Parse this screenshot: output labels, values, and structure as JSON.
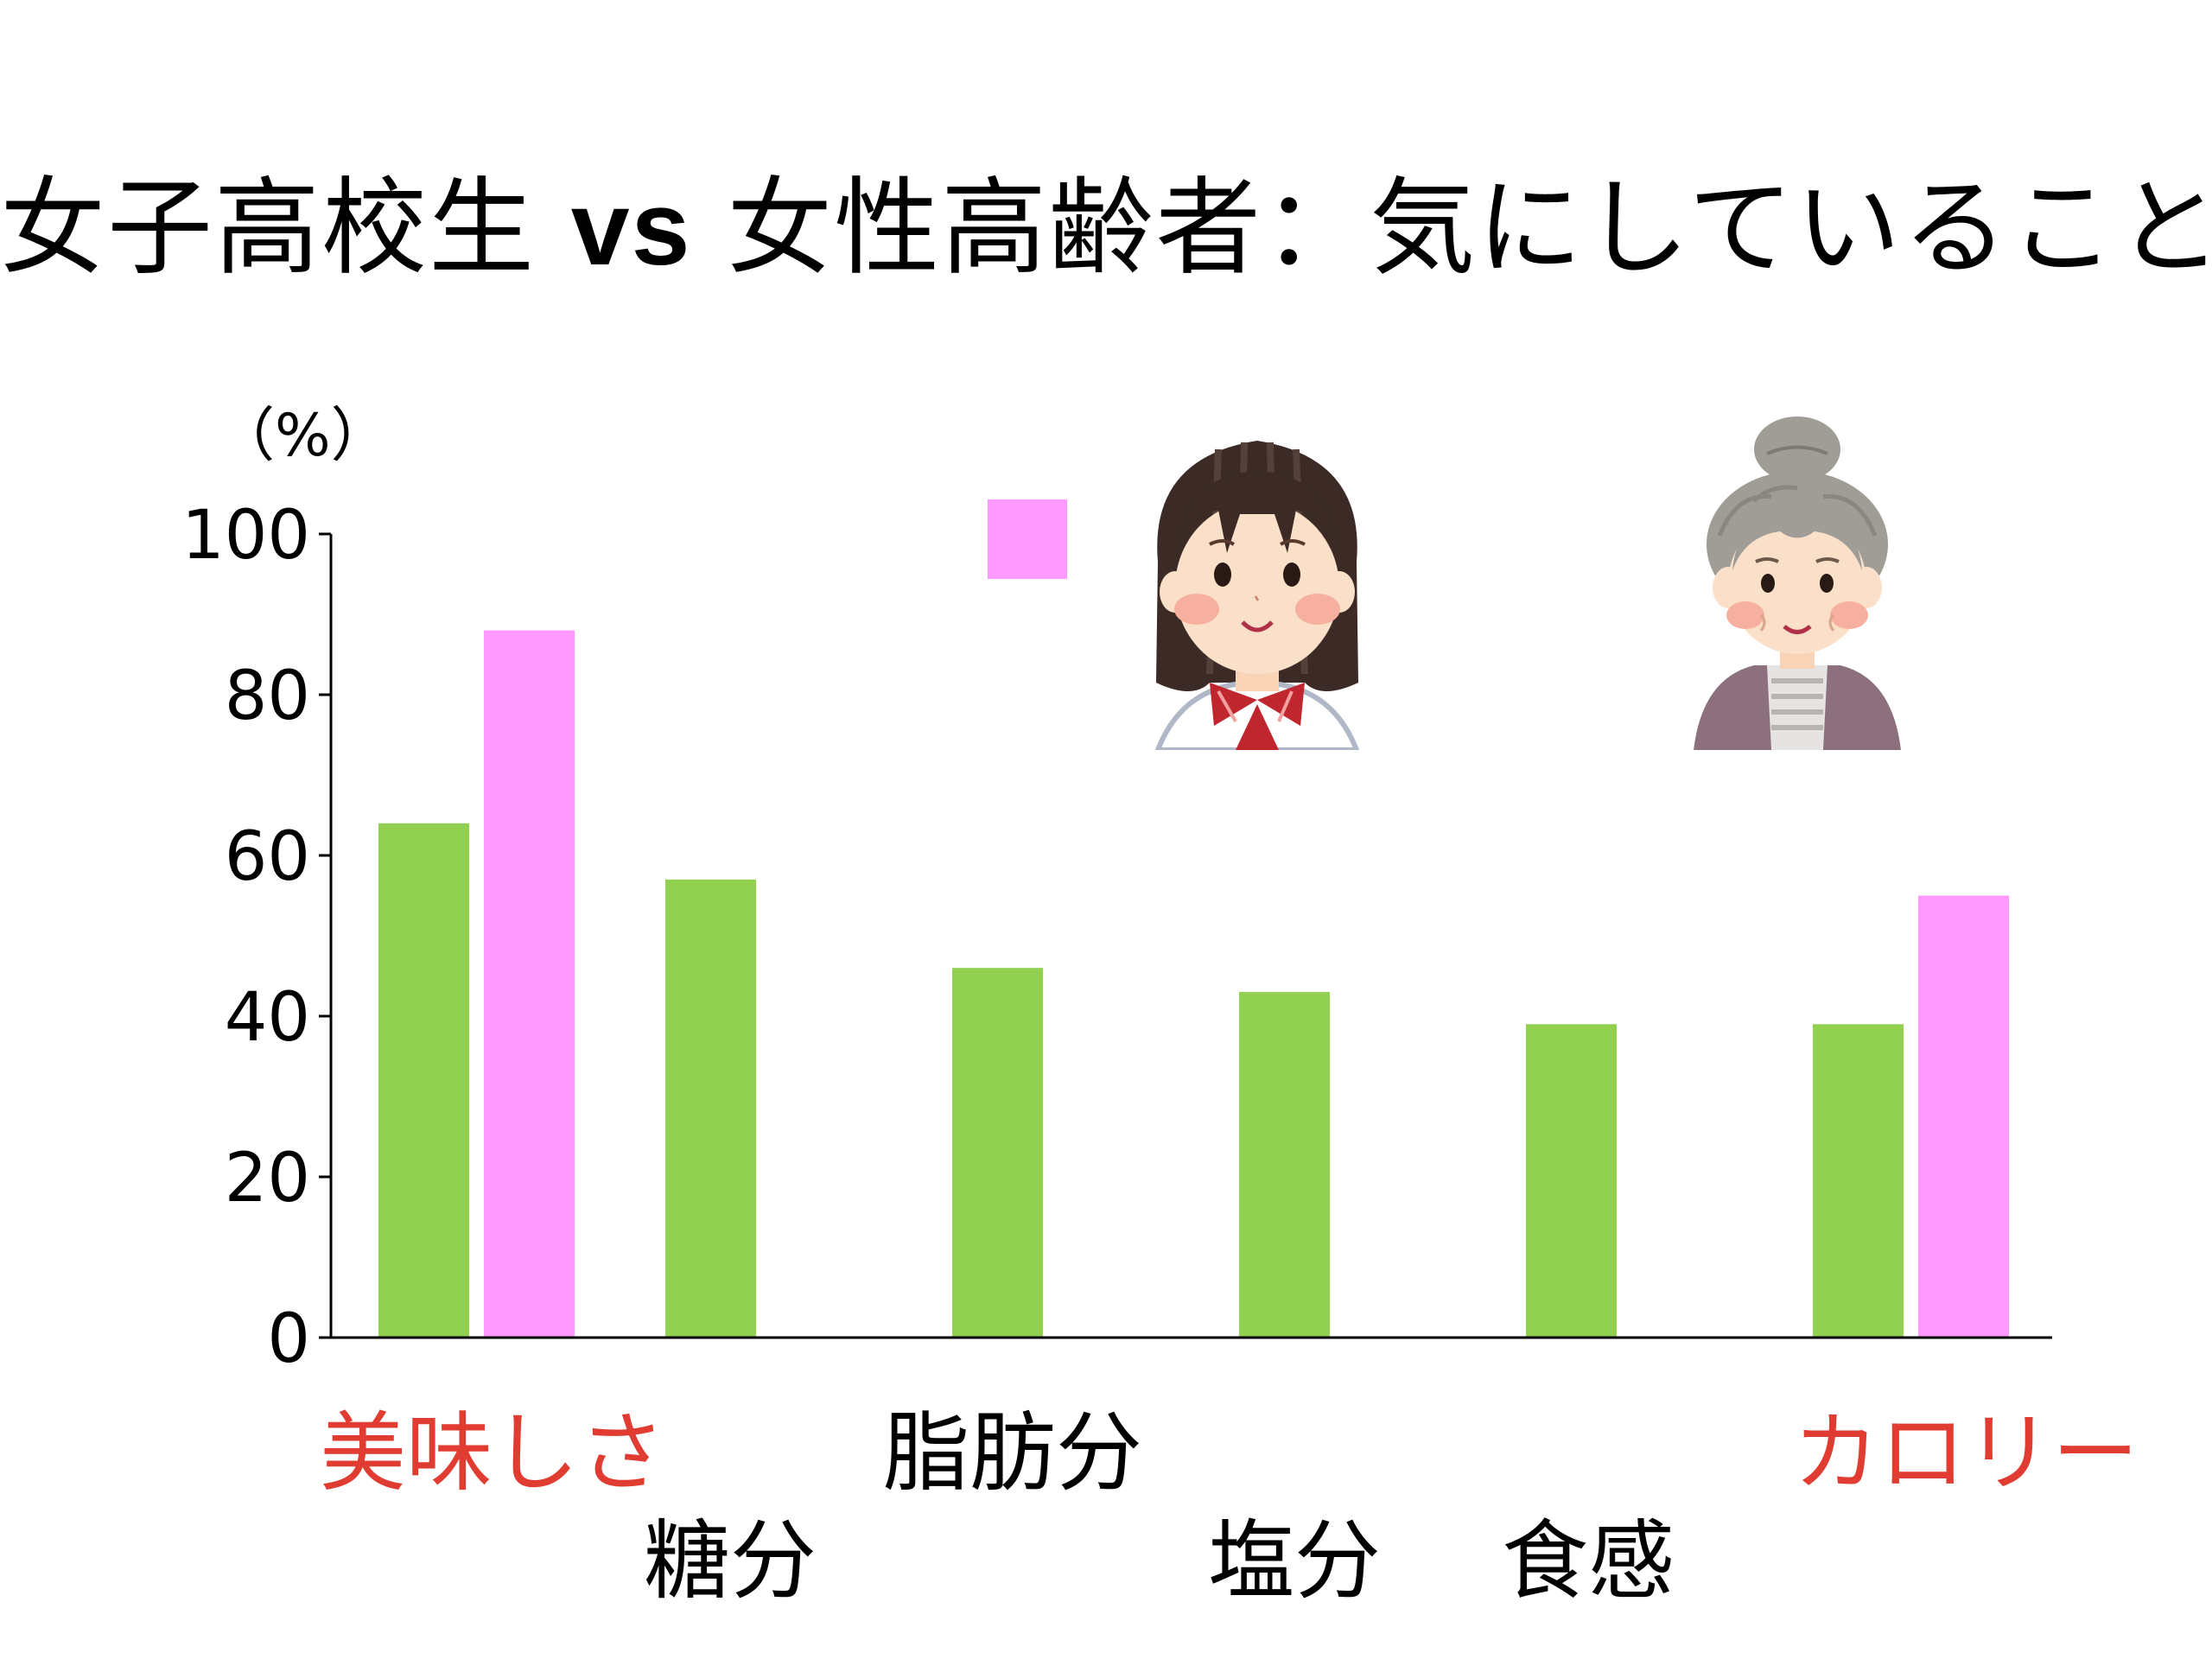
{
  "title": {
    "part1": "女子高校生",
    "vs": "vs",
    "part2": "女性高齢者：気にしていること"
  },
  "chart_data": {
    "type": "bar",
    "title": "女子高校生 vs 女性高齢者：気にしていること",
    "ylabel": "（%）",
    "ylim": [
      0,
      100
    ],
    "yticks": [
      0,
      20,
      40,
      60,
      80,
      100
    ],
    "categories": [
      "美味しさ",
      "糖分",
      "脂肪分",
      "塩分",
      "食感",
      "カロリー"
    ],
    "series": [
      {
        "values": [
          64,
          57,
          46,
          43,
          39,
          39
        ],
        "color": "#92d050"
      },
      {
        "values": [
          88,
          null,
          null,
          null,
          null,
          55
        ],
        "color": "#ff99ff"
      }
    ],
    "highlight_color": "#e03c31",
    "highlighted_categories": [
      "美味しさ",
      "カロリー"
    ],
    "legend": {
      "placement": "top-center",
      "swatch_color": "#ff99ff"
    },
    "grid": false
  },
  "icons": {
    "schoolgirl": "schoolgirl-illustration-icon",
    "elderly_woman": "elderly-woman-illustration-icon"
  },
  "colors": {
    "green": "#92d050",
    "pink": "#ff99ff",
    "red": "#e03c31",
    "axis": "#000000"
  }
}
